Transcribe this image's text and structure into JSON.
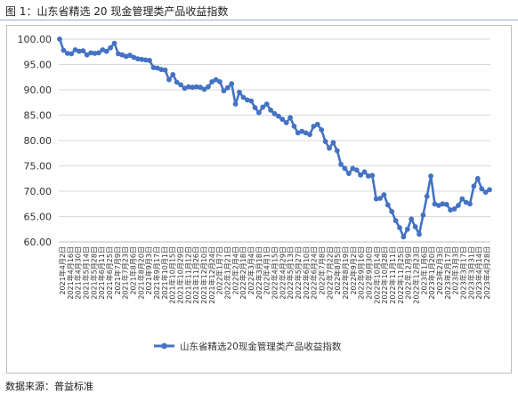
{
  "figure": {
    "title": "图 1：山东省精选 20 现金管理类产品收益指数",
    "source": "数据来源：普益标准"
  },
  "chart_data": {
    "type": "line",
    "title": "",
    "xlabel": "",
    "ylabel": "",
    "ylim": [
      60,
      100
    ],
    "y_ticks": [
      "60.00",
      "65.00",
      "70.00",
      "75.00",
      "80.00",
      "85.00",
      "90.00",
      "95.00",
      "100.00"
    ],
    "grid": "horizontal",
    "legend": "bottom-center",
    "series_color": "#4472c4",
    "x_tick_labels": [
      "2021年4月2日",
      "2021年4月16日",
      "2021年4月30日",
      "2021年5月14日",
      "2021年5月28日",
      "2021年6月11日",
      "2021年6月25日",
      "2021年7月9日",
      "2021年7月23日",
      "2021年8月6日",
      "2021年8月20日",
      "2021年9月3日",
      "2021年9月17日",
      "2021年10月1日",
      "2021年10月15日",
      "2021年10月29日",
      "2021年11月12日",
      "2021年11月26日",
      "2021年12月10日",
      "2021年12月24日",
      "2022年1月7日",
      "2022年1月21日",
      "2022年2月4日",
      "2022年2月18日",
      "2022年3月4日",
      "2022年3月18日",
      "2022年4月1日",
      "2022年4月15日",
      "2022年4月29日",
      "2022年5月13日",
      "2022年5月27日",
      "2022年6月10日",
      "2022年6月24日",
      "2022年7月8日",
      "2022年7月22日",
      "2022年8月5日",
      "2022年8月19日",
      "2022年9月2日",
      "2022年9月16日",
      "2022年9月30日",
      "2022年10月14日",
      "2022年10月28日",
      "2022年11月11日",
      "2022年11月25日",
      "2022年12月9日",
      "2022年12月23日",
      "2023年1月6日",
      "2023年1月20日",
      "2023年2月3日",
      "2023年2月17日",
      "2023年3月3日",
      "2023年3月17日",
      "2023年3月31日",
      "2023年4月14日",
      "2023年4月28日"
    ],
    "series": [
      {
        "name": "山东省精选20现金管理类产品收益指数",
        "values": [
          100.0,
          97.8,
          97.2,
          97.1,
          97.9,
          97.6,
          97.7,
          96.9,
          97.3,
          97.2,
          97.3,
          97.9,
          97.6,
          98.3,
          99.2,
          97.1,
          96.9,
          96.6,
          96.8,
          96.4,
          96.1,
          96.0,
          95.9,
          95.8,
          94.4,
          94.3,
          94.0,
          93.9,
          92.0,
          93.0,
          91.5,
          91.0,
          90.3,
          90.6,
          90.5,
          90.6,
          90.5,
          90.1,
          90.6,
          91.6,
          92.0,
          91.6,
          89.8,
          90.4,
          91.2,
          87.2,
          89.5,
          88.5,
          88.0,
          87.8,
          86.5,
          85.5,
          86.6,
          87.2,
          86.0,
          85.3,
          84.8,
          84.2,
          83.5,
          84.5,
          82.8,
          81.5,
          81.8,
          81.5,
          81.2,
          82.8,
          83.2,
          82.1,
          79.8,
          78.5,
          79.6,
          78.0,
          75.3,
          74.5,
          73.5,
          74.5,
          74.2,
          73.2,
          73.8,
          73.0,
          73.1,
          68.5,
          68.6,
          69.3,
          67.3,
          66.0,
          64.2,
          62.8,
          61.0,
          62.5,
          64.5,
          63.0,
          61.5,
          65.3,
          69.0,
          73.0,
          67.5,
          67.2,
          67.5,
          67.4,
          66.3,
          66.5,
          67.2,
          68.5,
          67.8,
          67.5,
          71.0,
          72.5,
          70.5,
          69.8,
          70.3
        ]
      }
    ]
  }
}
